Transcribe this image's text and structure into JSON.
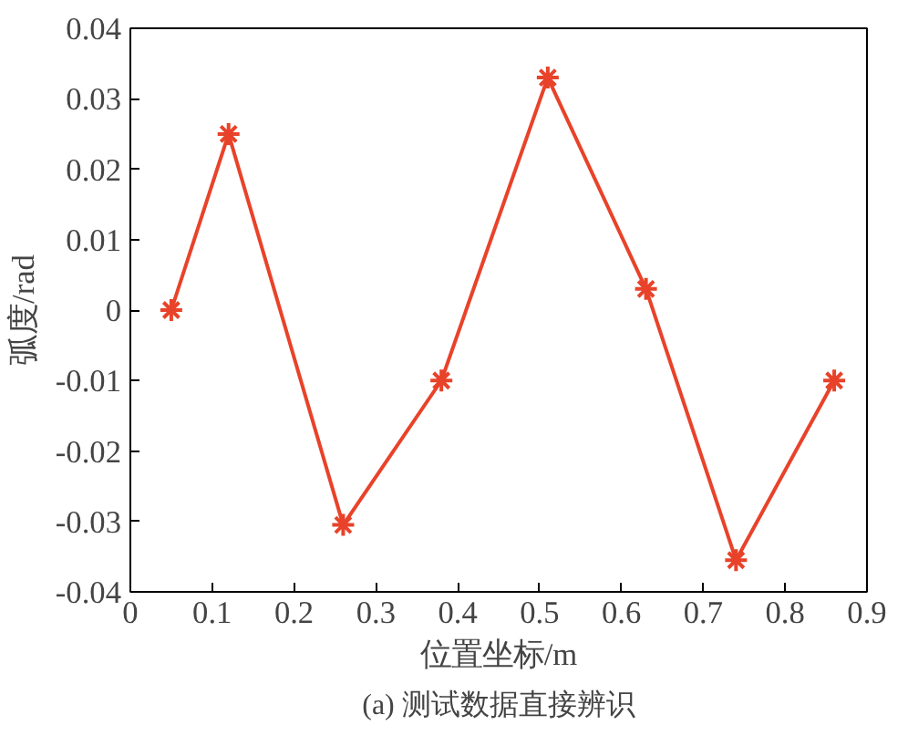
{
  "chart_data": {
    "type": "line",
    "xlabel": "位置坐标/m",
    "ylabel": "弧度/rad",
    "annotations": [
      "(a) 测试数据直接辨识"
    ],
    "x": [
      0.05,
      0.12,
      0.26,
      0.38,
      0.51,
      0.63,
      0.74,
      0.86
    ],
    "series": [
      {
        "color": "#e8432a",
        "values": [
          0.0,
          0.025,
          -0.0305,
          -0.01,
          0.033,
          0.003,
          -0.0355,
          -0.01
        ]
      }
    ],
    "marker": "cross",
    "line_style": "solid",
    "grid": false,
    "xlim": [
      0,
      0.9
    ],
    "xticks": [
      0,
      0.1,
      0.2,
      0.3,
      0.4,
      0.5,
      0.6,
      0.7,
      0.8,
      0.9
    ],
    "ylim": [
      -0.04,
      0.04
    ],
    "yticks": [
      -0.04,
      -0.03,
      -0.02,
      -0.01,
      0,
      0.01,
      0.02,
      0.03,
      0.04
    ]
  }
}
